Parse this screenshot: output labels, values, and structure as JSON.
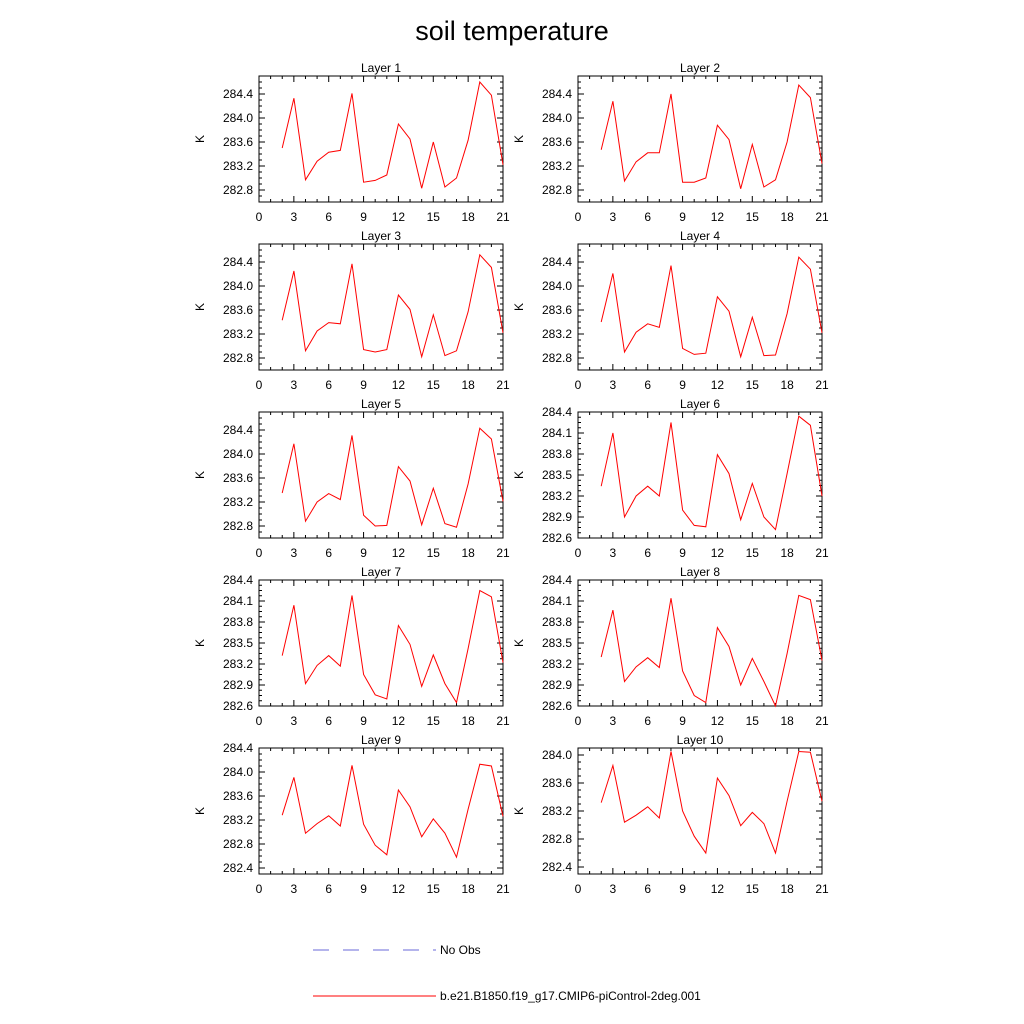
{
  "title": "soil temperature",
  "colors": {
    "model": "#ff0000",
    "obs": "#6a6ad8",
    "axis": "#000000"
  },
  "legend": {
    "items": [
      {
        "label": "No Obs",
        "style": "dashed",
        "color": "#6a6ad8"
      },
      {
        "label": "b.e21.B1850.f19_g17.CMIP6-piControl-2deg.001",
        "style": "solid",
        "color": "#ff0000"
      }
    ]
  },
  "chart_data": [
    {
      "type": "line",
      "title": "Layer 1",
      "ylabel": "K",
      "xlim": [
        0,
        21
      ],
      "xticks": [
        0,
        3,
        6,
        9,
        12,
        15,
        18,
        21
      ],
      "ylim": [
        282.6,
        284.7
      ],
      "yticks": [
        282.8,
        283.2,
        283.6,
        284.0,
        284.4
      ],
      "ytick_labels": [
        "282.8",
        "283.2",
        "283.6",
        "284.0",
        "284.4"
      ],
      "series": [
        {
          "x": [
            2,
            3,
            4,
            5,
            6,
            7,
            8,
            9,
            10,
            11,
            12,
            13,
            14,
            15,
            16,
            17,
            18,
            19,
            20,
            21
          ],
          "y": [
            283.5,
            284.33,
            282.97,
            283.28,
            283.43,
            283.46,
            284.41,
            282.93,
            282.96,
            283.05,
            283.9,
            283.65,
            282.83,
            283.6,
            282.85,
            283.0,
            283.63,
            284.6,
            284.38,
            283.22
          ]
        }
      ]
    },
    {
      "type": "line",
      "title": "Layer 2",
      "ylabel": "K",
      "xlim": [
        0,
        21
      ],
      "xticks": [
        0,
        3,
        6,
        9,
        12,
        15,
        18,
        21
      ],
      "ylim": [
        282.6,
        284.7
      ],
      "yticks": [
        282.8,
        283.2,
        283.6,
        284.0,
        284.4
      ],
      "ytick_labels": [
        "282.8",
        "283.2",
        "283.6",
        "284.0",
        "284.4"
      ],
      "series": [
        {
          "x": [
            2,
            3,
            4,
            5,
            6,
            7,
            8,
            9,
            10,
            11,
            12,
            13,
            14,
            15,
            16,
            17,
            18,
            19,
            20,
            21
          ],
          "y": [
            283.47,
            284.28,
            282.95,
            283.27,
            283.42,
            283.42,
            284.4,
            282.93,
            282.93,
            283.0,
            283.88,
            283.64,
            282.82,
            283.56,
            282.85,
            282.97,
            283.6,
            284.55,
            284.34,
            283.24
          ]
        }
      ]
    },
    {
      "type": "line",
      "title": "Layer 3",
      "ylabel": "K",
      "xlim": [
        0,
        21
      ],
      "xticks": [
        0,
        3,
        6,
        9,
        12,
        15,
        18,
        21
      ],
      "ylim": [
        282.6,
        284.7
      ],
      "yticks": [
        282.8,
        283.2,
        283.6,
        284.0,
        284.4
      ],
      "ytick_labels": [
        "282.8",
        "283.2",
        "283.6",
        "284.0",
        "284.4"
      ],
      "series": [
        {
          "x": [
            2,
            3,
            4,
            5,
            6,
            7,
            8,
            9,
            10,
            11,
            12,
            13,
            14,
            15,
            16,
            17,
            18,
            19,
            20,
            21
          ],
          "y": [
            283.43,
            284.25,
            282.92,
            283.25,
            283.39,
            283.37,
            284.37,
            282.94,
            282.9,
            282.94,
            283.85,
            283.61,
            282.82,
            283.52,
            282.84,
            282.92,
            283.57,
            284.52,
            284.31,
            283.22
          ]
        }
      ]
    },
    {
      "type": "line",
      "title": "Layer 4",
      "ylabel": "K",
      "xlim": [
        0,
        21
      ],
      "xticks": [
        0,
        3,
        6,
        9,
        12,
        15,
        18,
        21
      ],
      "ylim": [
        282.6,
        284.7
      ],
      "yticks": [
        282.8,
        283.2,
        283.6,
        284.0,
        284.4
      ],
      "ytick_labels": [
        "282.8",
        "283.2",
        "283.6",
        "284.0",
        "284.4"
      ],
      "series": [
        {
          "x": [
            2,
            3,
            4,
            5,
            6,
            7,
            8,
            9,
            10,
            11,
            12,
            13,
            14,
            15,
            16,
            17,
            18,
            19,
            20,
            21
          ],
          "y": [
            283.4,
            284.21,
            282.9,
            283.23,
            283.37,
            283.31,
            284.34,
            282.96,
            282.86,
            282.88,
            283.82,
            283.58,
            282.82,
            283.48,
            282.84,
            282.85,
            283.54,
            284.48,
            284.28,
            283.22
          ]
        }
      ]
    },
    {
      "type": "line",
      "title": "Layer 5",
      "ylabel": "K",
      "xlim": [
        0,
        21
      ],
      "xticks": [
        0,
        3,
        6,
        9,
        12,
        15,
        18,
        21
      ],
      "ylim": [
        282.6,
        284.7
      ],
      "yticks": [
        282.8,
        283.2,
        283.6,
        284.0,
        284.4
      ],
      "ytick_labels": [
        "282.8",
        "283.2",
        "283.6",
        "284.0",
        "284.4"
      ],
      "series": [
        {
          "x": [
            2,
            3,
            4,
            5,
            6,
            7,
            8,
            9,
            10,
            11,
            12,
            13,
            14,
            15,
            16,
            17,
            18,
            19,
            20,
            21
          ],
          "y": [
            283.35,
            284.17,
            282.88,
            283.2,
            283.34,
            283.24,
            284.31,
            282.98,
            282.8,
            282.81,
            283.79,
            283.55,
            282.82,
            283.43,
            282.84,
            282.78,
            283.5,
            284.43,
            284.25,
            283.21
          ]
        }
      ]
    },
    {
      "type": "line",
      "title": "Layer 6",
      "ylabel": "K",
      "xlim": [
        0,
        21
      ],
      "xticks": [
        0,
        3,
        6,
        9,
        12,
        15,
        18,
        21
      ],
      "ylim": [
        282.6,
        284.4
      ],
      "yticks": [
        282.6,
        282.9,
        283.2,
        283.5,
        283.8,
        284.1,
        284.4
      ],
      "ytick_labels": [
        "282.6",
        "282.9",
        "283.2",
        "283.5",
        "283.8",
        "284.1",
        "284.4"
      ],
      "series": [
        {
          "x": [
            2,
            3,
            4,
            5,
            6,
            7,
            8,
            9,
            10,
            11,
            12,
            13,
            14,
            15,
            16,
            17,
            18,
            19,
            20,
            21
          ],
          "y": [
            283.34,
            284.1,
            282.9,
            283.2,
            283.34,
            283.2,
            284.25,
            283.0,
            282.78,
            282.76,
            283.79,
            283.52,
            282.86,
            283.38,
            282.9,
            282.72,
            283.52,
            284.34,
            284.21,
            283.2
          ]
        }
      ]
    },
    {
      "type": "line",
      "title": "Layer 7",
      "ylabel": "K",
      "xlim": [
        0,
        21
      ],
      "xticks": [
        0,
        3,
        6,
        9,
        12,
        15,
        18,
        21
      ],
      "ylim": [
        282.6,
        284.4
      ],
      "yticks": [
        282.6,
        282.9,
        283.2,
        283.5,
        283.8,
        284.1,
        284.4
      ],
      "ytick_labels": [
        "282.6",
        "282.9",
        "283.2",
        "283.5",
        "283.8",
        "284.1",
        "284.4"
      ],
      "series": [
        {
          "x": [
            2,
            3,
            4,
            5,
            6,
            7,
            8,
            9,
            10,
            11,
            12,
            13,
            14,
            15,
            16,
            17,
            18,
            19,
            20,
            21
          ],
          "y": [
            283.32,
            284.04,
            282.92,
            283.18,
            283.32,
            283.17,
            284.18,
            283.05,
            282.76,
            282.7,
            283.75,
            283.48,
            282.88,
            283.33,
            282.92,
            282.65,
            283.42,
            284.25,
            284.16,
            283.22
          ]
        }
      ]
    },
    {
      "type": "line",
      "title": "Layer 8",
      "ylabel": "K",
      "xlim": [
        0,
        21
      ],
      "xticks": [
        0,
        3,
        6,
        9,
        12,
        15,
        18,
        21
      ],
      "ylim": [
        282.6,
        284.4
      ],
      "yticks": [
        282.6,
        282.9,
        283.2,
        283.5,
        283.8,
        284.1,
        284.4
      ],
      "ytick_labels": [
        "282.6",
        "282.9",
        "283.2",
        "283.5",
        "283.8",
        "284.1",
        "284.4"
      ],
      "series": [
        {
          "x": [
            2,
            3,
            4,
            5,
            6,
            7,
            8,
            9,
            10,
            11,
            12,
            13,
            14,
            15,
            16,
            17,
            18,
            19,
            20,
            21
          ],
          "y": [
            283.3,
            283.97,
            282.95,
            283.16,
            283.29,
            283.15,
            284.14,
            283.1,
            282.75,
            282.65,
            283.72,
            283.45,
            282.9,
            283.28,
            282.95,
            282.6,
            283.35,
            284.18,
            284.12,
            283.25
          ]
        }
      ]
    },
    {
      "type": "line",
      "title": "Layer 9",
      "ylabel": "K",
      "xlim": [
        0,
        21
      ],
      "xticks": [
        0,
        3,
        6,
        9,
        12,
        15,
        18,
        21
      ],
      "ylim": [
        282.3,
        284.4
      ],
      "yticks": [
        282.4,
        282.8,
        283.2,
        283.6,
        284.0,
        284.4
      ],
      "ytick_labels": [
        "282.4",
        "282.8",
        "283.2",
        "283.6",
        "284.0",
        "284.4"
      ],
      "series": [
        {
          "x": [
            2,
            3,
            4,
            5,
            6,
            7,
            8,
            9,
            10,
            11,
            12,
            13,
            14,
            15,
            16,
            17,
            18,
            19,
            20,
            21
          ],
          "y": [
            283.28,
            283.91,
            282.98,
            283.14,
            283.27,
            283.1,
            284.11,
            283.13,
            282.78,
            282.62,
            283.7,
            283.42,
            282.92,
            283.22,
            282.98,
            282.58,
            283.38,
            284.13,
            284.1,
            283.26
          ]
        }
      ]
    },
    {
      "type": "line",
      "title": "Layer 10",
      "ylabel": "K",
      "xlim": [
        0,
        21
      ],
      "xticks": [
        0,
        3,
        6,
        9,
        12,
        15,
        18,
        21
      ],
      "ylim": [
        282.3,
        284.1
      ],
      "yticks": [
        282.4,
        282.8,
        283.2,
        283.6,
        284.0
      ],
      "ytick_labels": [
        "282.4",
        "282.8",
        "283.2",
        "283.6",
        "284.0"
      ],
      "series": [
        {
          "x": [
            2,
            3,
            4,
            5,
            6,
            7,
            8,
            9,
            10,
            11,
            12,
            13,
            14,
            15,
            16,
            17,
            18,
            19,
            20,
            21
          ],
          "y": [
            283.32,
            283.85,
            283.04,
            283.14,
            283.26,
            283.1,
            284.05,
            283.2,
            282.84,
            282.6,
            283.67,
            283.42,
            282.99,
            283.18,
            283.02,
            282.6,
            283.34,
            284.05,
            284.04,
            283.34
          ]
        }
      ]
    }
  ]
}
